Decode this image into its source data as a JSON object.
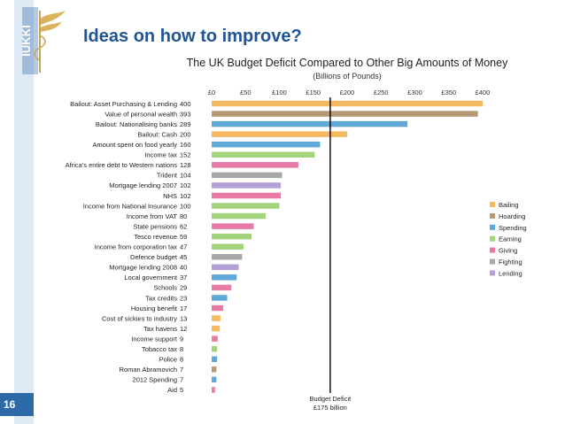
{
  "slide": {
    "title": "Ideas on how to improve?",
    "page_number": "16",
    "logo_text": "IUKKI"
  },
  "colors": {
    "Bailing": "#f5b960",
    "Hoarding": "#b79a75",
    "Spending": "#5fa8d8",
    "Earning": "#a3d47c",
    "Giving": "#e87aa8",
    "Fighting": "#a8a8a8",
    "Lending": "#b4a0d8",
    "sidebar": "#dde9f4",
    "title": "#1f5497"
  },
  "chart_data": {
    "type": "bar",
    "orientation": "horizontal",
    "title": "The UK Budget Deficit Compared to Other Big Amounts of Money",
    "subtitle": "(Billions of Pounds)",
    "xlim": [
      0,
      400
    ],
    "x_ticks": [
      "£0",
      "£50",
      "£100",
      "£150",
      "£200",
      "£250",
      "£300",
      "£350",
      "£400"
    ],
    "legend": [
      "Bailing",
      "Hoarding",
      "Spending",
      "Earning",
      "Giving",
      "Fighting",
      "Lending"
    ],
    "reference_line": {
      "value": 175,
      "label": "Budget Deficit",
      "sublabel": "£175 billion"
    },
    "bars": [
      {
        "label": "Bailout: Asset Purchasing & Lending",
        "value": 400,
        "category": "Bailing"
      },
      {
        "label": "Value of personal wealth",
        "value": 393,
        "category": "Hoarding"
      },
      {
        "label": "Bailout: Nationalising banks",
        "value": 289,
        "category": "Spending"
      },
      {
        "label": "Bailout: Cash",
        "value": 200,
        "category": "Bailing"
      },
      {
        "label": "Amount spent on food yearly",
        "value": 160,
        "category": "Spending"
      },
      {
        "label": "Income tax",
        "value": 152,
        "category": "Earning"
      },
      {
        "label": "Africa's entire debt to Western nations",
        "value": 128,
        "category": "Giving"
      },
      {
        "label": "Trident",
        "value": 104,
        "category": "Fighting"
      },
      {
        "label": "Mortgage lending 2007",
        "value": 102,
        "category": "Lending"
      },
      {
        "label": "NHS",
        "value": 102,
        "category": "Giving"
      },
      {
        "label": "Income from National Insurance",
        "value": 100,
        "category": "Earning"
      },
      {
        "label": "Income from VAT",
        "value": 80,
        "category": "Earning"
      },
      {
        "label": "State pensions",
        "value": 62,
        "category": "Giving"
      },
      {
        "label": "Tesco revenue",
        "value": 59,
        "category": "Earning"
      },
      {
        "label": "Income from corporation tax",
        "value": 47,
        "category": "Earning"
      },
      {
        "label": "Defence budget",
        "value": 45,
        "category": "Fighting"
      },
      {
        "label": "Mortgage lending 2008",
        "value": 40,
        "category": "Lending"
      },
      {
        "label": "Local government",
        "value": 37,
        "category": "Spending"
      },
      {
        "label": "Schools",
        "value": 29,
        "category": "Giving"
      },
      {
        "label": "Tax credits",
        "value": 23,
        "category": "Spending"
      },
      {
        "label": "Housing benefit",
        "value": 17,
        "category": "Giving"
      },
      {
        "label": "Cost of sickies to industry",
        "value": 13,
        "category": "Bailing"
      },
      {
        "label": "Tax havens",
        "value": 12,
        "category": "Bailing"
      },
      {
        "label": "Income support",
        "value": 9,
        "category": "Giving"
      },
      {
        "label": "Tobacco tax",
        "value": 8,
        "category": "Earning"
      },
      {
        "label": "Police",
        "value": 8,
        "category": "Spending"
      },
      {
        "label": "Roman Abramovich",
        "value": 7,
        "category": "Hoarding"
      },
      {
        "label": "2012 Spending",
        "value": 7,
        "category": "Spending"
      },
      {
        "label": "Aid",
        "value": 5,
        "category": "Giving"
      }
    ]
  }
}
